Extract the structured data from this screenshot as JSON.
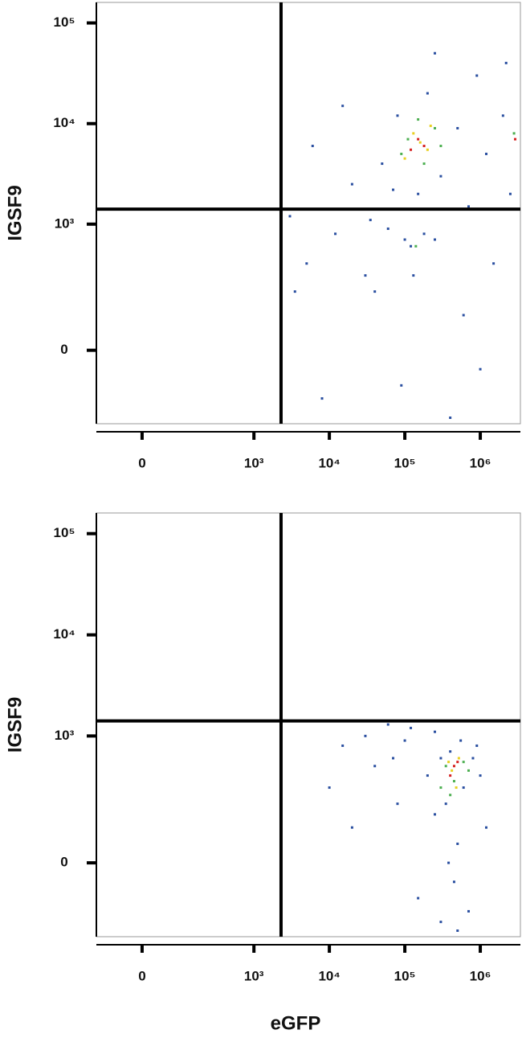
{
  "chart_data": [
    {
      "type": "scatter",
      "scale": "biexponential",
      "y_label": "IGSF9",
      "xlim": [
        -125,
        3400000
      ],
      "ylim": [
        -290,
        160000
      ],
      "xticks": [
        0,
        {
          "value": 1000,
          "label": "10³"
        },
        {
          "value": 10000,
          "label": "10⁴"
        },
        {
          "value": 100000,
          "label": "10⁵"
        },
        {
          "value": 1000000,
          "label": "10⁶"
        }
      ],
      "yticks": [
        0,
        {
          "value": 1000,
          "label": "10³"
        },
        {
          "value": 10000,
          "label": "10⁴"
        },
        {
          "value": 100000,
          "label": "10⁵"
        }
      ],
      "gates": {
        "x": 2290,
        "y": 1410
      },
      "series": [
        {
          "color": "#2a4fa0",
          "x": [
            3000,
            5000,
            8000,
            12000,
            20000,
            30000,
            50000,
            60000,
            80000,
            90000,
            120000,
            150000,
            200000,
            250000,
            300000,
            400000,
            500000,
            700000,
            900000,
            1200000,
            1500000,
            2000000,
            2500000,
            6000,
            15000,
            40000,
            100000,
            180000,
            2200000,
            600000,
            35000,
            3500,
            250000,
            1000000,
            70000,
            130000
          ],
          "y": [
            1200,
            400,
            -150,
            800,
            2500,
            300,
            4000,
            900,
            12000,
            -100,
            600,
            2000,
            20000,
            700,
            3000,
            -250,
            9000,
            1500,
            30000,
            5000,
            400,
            12000,
            2000,
            6000,
            15000,
            200,
            700,
            800,
            40000,
            100,
            1100,
            200,
            50000,
            -50,
            2200,
            300
          ]
        },
        {
          "color": "#4caf50",
          "x": [
            110000,
            180000,
            250000,
            90000,
            300000,
            150000,
            140000,
            2800000
          ],
          "y": [
            7000,
            4000,
            9000,
            5000,
            6000,
            11000,
            600,
            8000
          ]
        },
        {
          "color": "#e8d020",
          "x": [
            130000,
            200000,
            160000,
            100000,
            220000
          ],
          "y": [
            8000,
            5500,
            6500,
            4500,
            9500
          ]
        },
        {
          "color": "#d62020",
          "x": [
            150000,
            180000,
            120000,
            2900000
          ],
          "y": [
            7000,
            6000,
            5500,
            7000
          ]
        }
      ]
    },
    {
      "type": "scatter",
      "scale": "biexponential",
      "y_label": "IGSF9",
      "x_label": "eGFP",
      "xlim": [
        -125,
        3400000
      ],
      "ylim": [
        -290,
        160000
      ],
      "xticks": [
        0,
        {
          "value": 1000,
          "label": "10³"
        },
        {
          "value": 10000,
          "label": "10⁴"
        },
        {
          "value": 100000,
          "label": "10⁵"
        },
        {
          "value": 1000000,
          "label": "10⁶"
        }
      ],
      "yticks": [
        0,
        {
          "value": 1000,
          "label": "10³"
        },
        {
          "value": 10000,
          "label": "10⁴"
        },
        {
          "value": 100000,
          "label": "10⁵"
        }
      ],
      "gates": {
        "x": 2290,
        "y": 1410
      },
      "series": [
        {
          "color": "#2a4fa0",
          "x": [
            10000,
            15000,
            20000,
            30000,
            40000,
            60000,
            80000,
            100000,
            150000,
            200000,
            250000,
            300000,
            350000,
            400000,
            500000,
            600000,
            700000,
            800000,
            1000000,
            1200000,
            300000,
            450000,
            550000,
            380000,
            120000,
            70000,
            500000,
            250000,
            900000
          ],
          "y": [
            300,
            800,
            100,
            1000,
            500,
            1300,
            200,
            900,
            -100,
            400,
            1100,
            -200,
            200,
            700,
            50,
            300,
            -150,
            600,
            400,
            100,
            600,
            -50,
            900,
            0,
            1200,
            600,
            -250,
            150,
            800
          ]
        },
        {
          "color": "#4caf50",
          "x": [
            350000,
            450000,
            600000,
            400000,
            700000,
            300000
          ],
          "y": [
            500,
            350,
            550,
            250,
            450,
            300
          ]
        },
        {
          "color": "#e8d020",
          "x": [
            420000,
            520000,
            380000,
            480000
          ],
          "y": [
            450,
            600,
            550,
            300
          ]
        },
        {
          "color": "#d62020",
          "x": [
            450000,
            500000,
            400000
          ],
          "y": [
            500,
            550,
            400
          ]
        }
      ]
    }
  ]
}
